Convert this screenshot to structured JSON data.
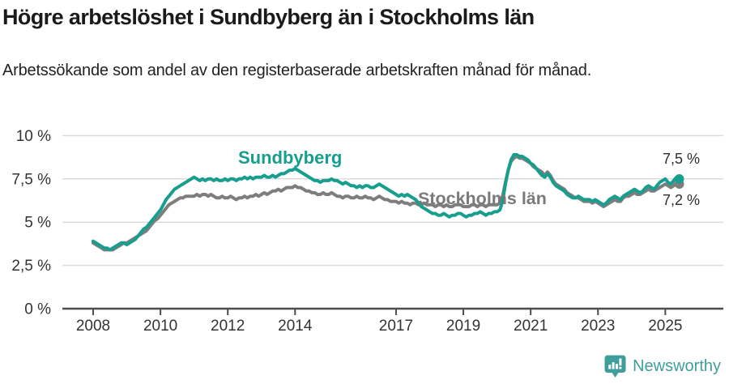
{
  "header": {
    "title": "Högre arbetslöshet i Sundbyberg än i Stockholms län",
    "subtitle": "Arbetssökande som andel av den registerbaserade arbetskraften månad för månad."
  },
  "chart_data": {
    "type": "line",
    "title": "Högre arbetslöshet i Sundbyberg än i Stockholms län",
    "ylabel": "",
    "xlabel": "",
    "unit": "%",
    "ylim": [
      0,
      10
    ],
    "grid": "horizontal",
    "x_start_year": 2008,
    "x_interval": "monthly",
    "x_end_label_year": "2025 (June)",
    "yticks": [
      {
        "value": 0,
        "label": "0 %"
      },
      {
        "value": 2.5,
        "label": "2,5 %"
      },
      {
        "value": 5,
        "label": "5 %"
      },
      {
        "value": 7.5,
        "label": "7,5 %"
      },
      {
        "value": 10,
        "label": "10 %"
      }
    ],
    "xticks": [
      {
        "value": 2008,
        "label": "2008"
      },
      {
        "value": 2010,
        "label": "2010"
      },
      {
        "value": 2012,
        "label": "2012"
      },
      {
        "value": 2014,
        "label": "2014"
      },
      {
        "value": 2017,
        "label": "2017"
      },
      {
        "value": 2019,
        "label": "2019"
      },
      {
        "value": 2021,
        "label": "2021"
      },
      {
        "value": 2023,
        "label": "2023"
      },
      {
        "value": 2025,
        "label": "2025"
      }
    ],
    "series": [
      {
        "id": "sundbyberg",
        "name": "Sundbyberg",
        "color": "#179e8e",
        "end_label": "7,5 %",
        "end_value": 7.5,
        "values": [
          3.9,
          3.8,
          3.7,
          3.6,
          3.5,
          3.5,
          3.4,
          3.5,
          3.6,
          3.7,
          3.8,
          3.8,
          3.7,
          3.8,
          3.9,
          4.0,
          4.2,
          4.4,
          4.6,
          4.7,
          4.9,
          5.1,
          5.3,
          5.5,
          5.7,
          6.0,
          6.3,
          6.5,
          6.7,
          6.9,
          7.0,
          7.1,
          7.2,
          7.3,
          7.4,
          7.5,
          7.6,
          7.5,
          7.4,
          7.5,
          7.4,
          7.5,
          7.5,
          7.4,
          7.5,
          7.4,
          7.4,
          7.5,
          7.4,
          7.5,
          7.5,
          7.4,
          7.5,
          7.5,
          7.6,
          7.5,
          7.6,
          7.5,
          7.6,
          7.6,
          7.6,
          7.7,
          7.6,
          7.6,
          7.7,
          7.6,
          7.7,
          7.8,
          7.8,
          7.9,
          8.0,
          8.0,
          8.1,
          8.0,
          7.9,
          7.8,
          7.7,
          7.6,
          7.5,
          7.4,
          7.4,
          7.3,
          7.4,
          7.4,
          7.4,
          7.5,
          7.4,
          7.4,
          7.3,
          7.2,
          7.3,
          7.2,
          7.1,
          7.1,
          7.0,
          7.1,
          7.0,
          7.1,
          7.1,
          7.0,
          7.0,
          7.1,
          7.2,
          7.1,
          7.0,
          6.9,
          6.8,
          6.7,
          6.6,
          6.5,
          6.6,
          6.5,
          6.6,
          6.5,
          6.4,
          6.3,
          6.1,
          5.9,
          5.8,
          5.7,
          5.6,
          5.5,
          5.5,
          5.4,
          5.4,
          5.5,
          5.4,
          5.3,
          5.4,
          5.4,
          5.5,
          5.5,
          5.4,
          5.3,
          5.4,
          5.4,
          5.5,
          5.5,
          5.6,
          5.5,
          5.4,
          5.5,
          5.5,
          5.6,
          5.6,
          5.7,
          6.2,
          7.2,
          8.0,
          8.6,
          8.9,
          8.9,
          8.8,
          8.8,
          8.7,
          8.6,
          8.4,
          8.3,
          8.1,
          7.9,
          7.7,
          7.6,
          7.8,
          7.6,
          7.3,
          7.1,
          7.0,
          6.9,
          6.8,
          6.6,
          6.5,
          6.4,
          6.4,
          6.5,
          6.4,
          6.3,
          6.3,
          6.3,
          6.2,
          6.3,
          6.2,
          6.1,
          6.0,
          6.1,
          6.3,
          6.4,
          6.5,
          6.4,
          6.3,
          6.5,
          6.6,
          6.7,
          6.8,
          6.9,
          6.8,
          6.7,
          6.8,
          7.0,
          7.1,
          7.0,
          6.9,
          7.1,
          7.3,
          7.4,
          7.5,
          7.3,
          7.2,
          7.4,
          7.6,
          7.5
        ]
      },
      {
        "id": "stockholms-lan",
        "name": "Stockholms län",
        "color": "#7d7d7d",
        "end_label": "7,2 %",
        "end_value": 7.2,
        "values": [
          3.8,
          3.7,
          3.6,
          3.5,
          3.4,
          3.4,
          3.4,
          3.4,
          3.5,
          3.6,
          3.7,
          3.8,
          3.8,
          3.9,
          4.0,
          4.1,
          4.2,
          4.3,
          4.4,
          4.5,
          4.7,
          4.9,
          5.1,
          5.2,
          5.4,
          5.6,
          5.8,
          6.0,
          6.1,
          6.2,
          6.3,
          6.4,
          6.4,
          6.5,
          6.5,
          6.5,
          6.5,
          6.6,
          6.5,
          6.6,
          6.6,
          6.5,
          6.6,
          6.5,
          6.4,
          6.4,
          6.5,
          6.4,
          6.4,
          6.5,
          6.4,
          6.3,
          6.4,
          6.4,
          6.5,
          6.4,
          6.5,
          6.5,
          6.6,
          6.5,
          6.6,
          6.7,
          6.6,
          6.7,
          6.8,
          6.8,
          6.9,
          6.8,
          6.9,
          7.0,
          7.0,
          7.0,
          7.1,
          7.0,
          7.0,
          6.9,
          6.8,
          6.8,
          6.7,
          6.7,
          6.6,
          6.6,
          6.7,
          6.6,
          6.6,
          6.7,
          6.6,
          6.5,
          6.5,
          6.4,
          6.5,
          6.5,
          6.4,
          6.4,
          6.5,
          6.4,
          6.4,
          6.5,
          6.4,
          6.4,
          6.3,
          6.4,
          6.5,
          6.4,
          6.3,
          6.3,
          6.2,
          6.2,
          6.2,
          6.1,
          6.2,
          6.1,
          6.1,
          6.0,
          6.1,
          6.1,
          6.0,
          6.0,
          6.1,
          6.0,
          6.0,
          6.0,
          5.9,
          6.0,
          6.0,
          5.9,
          6.0,
          5.9,
          5.9,
          6.0,
          6.0,
          6.0,
          5.9,
          5.9,
          5.9,
          6.0,
          6.0,
          5.9,
          6.0,
          6.0,
          5.9,
          6.0,
          6.0,
          6.0,
          6.0,
          6.1,
          6.5,
          7.3,
          8.0,
          8.5,
          8.7,
          8.8,
          8.7,
          8.7,
          8.6,
          8.5,
          8.4,
          8.2,
          8.1,
          8.0,
          7.9,
          7.7,
          7.9,
          7.7,
          7.4,
          7.2,
          7.1,
          7.0,
          6.9,
          6.7,
          6.6,
          6.5,
          6.4,
          6.4,
          6.3,
          6.2,
          6.2,
          6.2,
          6.1,
          6.2,
          6.1,
          6.0,
          5.9,
          6.0,
          6.1,
          6.2,
          6.3,
          6.2,
          6.2,
          6.4,
          6.5,
          6.5,
          6.6,
          6.7,
          6.6,
          6.6,
          6.7,
          6.8,
          6.9,
          6.8,
          6.8,
          6.9,
          7.0,
          7.1,
          7.2,
          7.1,
          7.0,
          7.1,
          7.3,
          7.2
        ]
      }
    ]
  },
  "footer": {
    "brand": "Newsworthy",
    "brand_color": "#3f9e9b"
  },
  "colors": {
    "accent_teal": "#179e8e",
    "series_gray": "#7d7d7d",
    "gridline": "#dcdcdc",
    "axis": "#4d4d4d",
    "text_dark": "#1a1a1a"
  }
}
